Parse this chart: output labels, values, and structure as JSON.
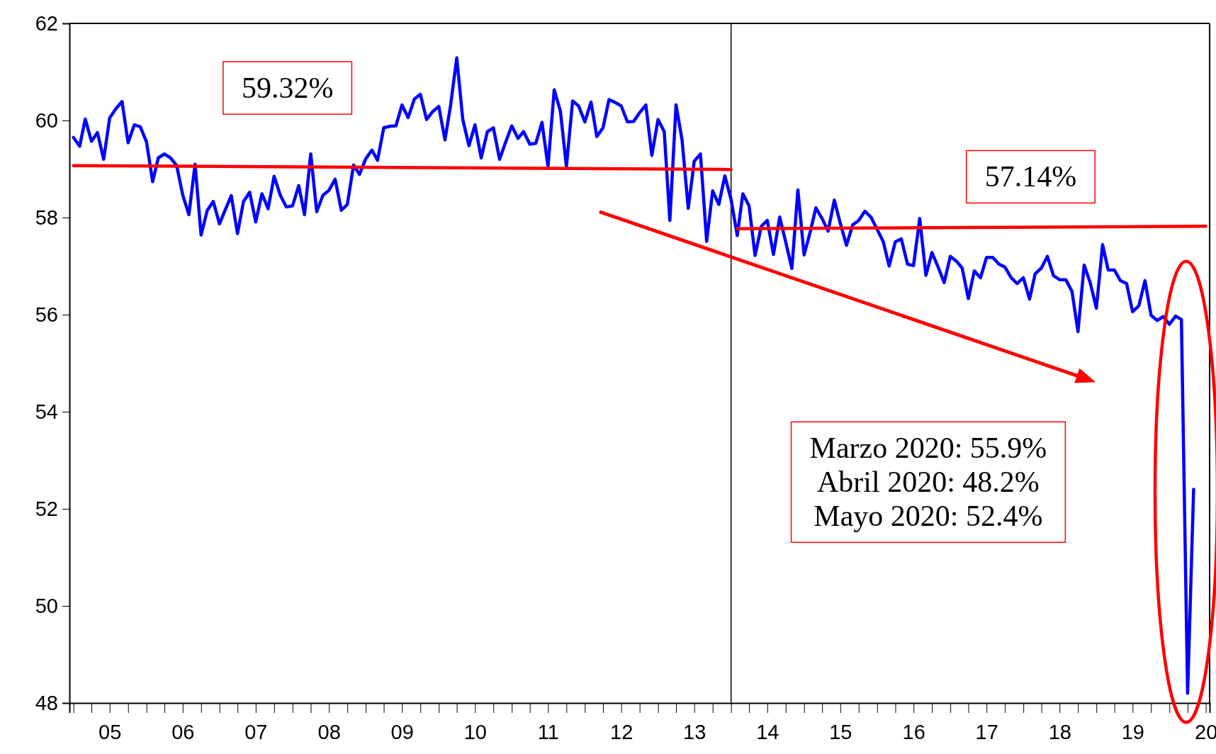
{
  "chart_data": {
    "type": "line",
    "xlim": [
      "2004-12-12",
      "2020-07-20"
    ],
    "ylim": [
      48,
      62
    ],
    "yticks": [
      48,
      50,
      52,
      54,
      56,
      58,
      60,
      62
    ],
    "xticks": [
      {
        "value": "2005-01-01",
        "label": null
      },
      {
        "value": "2005-04-01",
        "label": null
      },
      {
        "value": "2005-07-01",
        "label": "05"
      },
      {
        "value": "2005-10-01",
        "label": null
      },
      {
        "value": "2006-01-01",
        "label": null
      },
      {
        "value": "2006-04-01",
        "label": null
      },
      {
        "value": "2006-07-01",
        "label": "06"
      },
      {
        "value": "2006-10-01",
        "label": null
      },
      {
        "value": "2007-01-01",
        "label": null
      },
      {
        "value": "2007-04-01",
        "label": null
      },
      {
        "value": "2007-07-01",
        "label": "07"
      },
      {
        "value": "2007-10-01",
        "label": null
      },
      {
        "value": "2008-01-01",
        "label": null
      },
      {
        "value": "2008-04-01",
        "label": null
      },
      {
        "value": "2008-07-01",
        "label": "08"
      },
      {
        "value": "2008-10-01",
        "label": null
      },
      {
        "value": "2009-01-01",
        "label": null
      },
      {
        "value": "2009-04-01",
        "label": null
      },
      {
        "value": "2009-07-01",
        "label": "09"
      },
      {
        "value": "2009-10-01",
        "label": null
      },
      {
        "value": "2010-01-01",
        "label": null
      },
      {
        "value": "2010-04-01",
        "label": null
      },
      {
        "value": "2010-07-01",
        "label": "10"
      },
      {
        "value": "2010-10-01",
        "label": null
      },
      {
        "value": "2011-01-01",
        "label": null
      },
      {
        "value": "2011-04-01",
        "label": null
      },
      {
        "value": "2011-07-01",
        "label": "11"
      },
      {
        "value": "2011-10-01",
        "label": null
      },
      {
        "value": "2012-01-01",
        "label": null
      },
      {
        "value": "2012-04-01",
        "label": null
      },
      {
        "value": "2012-07-01",
        "label": "12"
      },
      {
        "value": "2012-10-01",
        "label": null
      },
      {
        "value": "2013-01-01",
        "label": null
      },
      {
        "value": "2013-04-01",
        "label": null
      },
      {
        "value": "2013-07-01",
        "label": "13"
      },
      {
        "value": "2013-10-01",
        "label": null
      },
      {
        "value": "2014-01-01",
        "label": null
      },
      {
        "value": "2014-04-01",
        "label": null
      },
      {
        "value": "2014-07-01",
        "label": "14"
      },
      {
        "value": "2014-10-01",
        "label": null
      },
      {
        "value": "2015-01-01",
        "label": null
      },
      {
        "value": "2015-04-01",
        "label": null
      },
      {
        "value": "2015-07-01",
        "label": "15"
      },
      {
        "value": "2015-10-01",
        "label": null
      },
      {
        "value": "2016-01-01",
        "label": null
      },
      {
        "value": "2016-04-01",
        "label": null
      },
      {
        "value": "2016-07-01",
        "label": "16"
      },
      {
        "value": "2016-10-01",
        "label": null
      },
      {
        "value": "2017-01-01",
        "label": null
      },
      {
        "value": "2017-04-01",
        "label": null
      },
      {
        "value": "2017-07-01",
        "label": "17"
      },
      {
        "value": "2017-10-01",
        "label": null
      },
      {
        "value": "2018-01-01",
        "label": null
      },
      {
        "value": "2018-04-01",
        "label": null
      },
      {
        "value": "2018-07-01",
        "label": "18"
      },
      {
        "value": "2018-10-01",
        "label": null
      },
      {
        "value": "2019-01-01",
        "label": null
      },
      {
        "value": "2019-04-01",
        "label": null
      },
      {
        "value": "2019-07-01",
        "label": "19"
      },
      {
        "value": "2019-10-01",
        "label": null
      },
      {
        "value": "2020-01-01",
        "label": null
      },
      {
        "value": "2020-04-01",
        "label": null
      },
      {
        "value": "2020-07-01",
        "label": "20"
      }
    ],
    "grid": false,
    "marker": "none",
    "line_style": "solid",
    "ref_lines": [
      {
        "axis": "x",
        "value": "2014-01-01",
        "color": "#000000"
      }
    ],
    "annotations": [
      "59.32%",
      "57.14%",
      "Marzo 2020: 55.9%\nAbril 2020: 48.2%\nMayo 2020: 52.4%"
    ],
    "series": [
      {
        "color": "#0000ff",
        "x": [
          "2005-01",
          "2005-02",
          "2005-03",
          "2005-04",
          "2005-05",
          "2005-06",
          "2005-07",
          "2005-08",
          "2005-09",
          "2005-10",
          "2005-11",
          "2005-12",
          "2006-01",
          "2006-02",
          "2006-03",
          "2006-04",
          "2006-05",
          "2006-06",
          "2006-07",
          "2006-08",
          "2006-09",
          "2006-10",
          "2006-11",
          "2006-12",
          "2007-01",
          "2007-02",
          "2007-03",
          "2007-04",
          "2007-05",
          "2007-06",
          "2007-07",
          "2007-08",
          "2007-09",
          "2007-10",
          "2007-11",
          "2007-12",
          "2008-01",
          "2008-02",
          "2008-03",
          "2008-04",
          "2008-05",
          "2008-06",
          "2008-07",
          "2008-08",
          "2008-09",
          "2008-10",
          "2008-11",
          "2008-12",
          "2009-01",
          "2009-02",
          "2009-03",
          "2009-04",
          "2009-05",
          "2009-06",
          "2009-07",
          "2009-08",
          "2009-09",
          "2009-10",
          "2009-11",
          "2009-12",
          "2010-01",
          "2010-02",
          "2010-03",
          "2010-04",
          "2010-05",
          "2010-06",
          "2010-07",
          "2010-08",
          "2010-09",
          "2010-10",
          "2010-11",
          "2010-12",
          "2011-01",
          "2011-02",
          "2011-03",
          "2011-04",
          "2011-05",
          "2011-06",
          "2011-07",
          "2011-08",
          "2011-09",
          "2011-10",
          "2011-11",
          "2011-12",
          "2012-01",
          "2012-02",
          "2012-03",
          "2012-04",
          "2012-05",
          "2012-06",
          "2012-07",
          "2012-08",
          "2012-09",
          "2012-10",
          "2012-11",
          "2012-12",
          "2013-01",
          "2013-02",
          "2013-03",
          "2013-04",
          "2013-05",
          "2013-06",
          "2013-07",
          "2013-08",
          "2013-09",
          "2013-10",
          "2013-11",
          "2013-12",
          "2014-01",
          "2014-02",
          "2014-03",
          "2014-04",
          "2014-05",
          "2014-06",
          "2014-07",
          "2014-08",
          "2014-09",
          "2014-10",
          "2014-11",
          "2014-12",
          "2015-01",
          "2015-02",
          "2015-03",
          "2015-04",
          "2015-05",
          "2015-06",
          "2015-07",
          "2015-08",
          "2015-09",
          "2015-10",
          "2015-11",
          "2015-12",
          "2016-01",
          "2016-02",
          "2016-03",
          "2016-04",
          "2016-05",
          "2016-06",
          "2016-07",
          "2016-08",
          "2016-09",
          "2016-10",
          "2016-11",
          "2016-12",
          "2017-01",
          "2017-02",
          "2017-03",
          "2017-04",
          "2017-05",
          "2017-06",
          "2017-07",
          "2017-08",
          "2017-09",
          "2017-10",
          "2017-11",
          "2017-12",
          "2018-01",
          "2018-02",
          "2018-03",
          "2018-04",
          "2018-05",
          "2018-06",
          "2018-07",
          "2018-08",
          "2018-09",
          "2018-10",
          "2018-11",
          "2018-12",
          "2019-01",
          "2019-02",
          "2019-03",
          "2019-04",
          "2019-05",
          "2019-06",
          "2019-07",
          "2019-08",
          "2019-09",
          "2019-10",
          "2019-11",
          "2019-12",
          "2020-01",
          "2020-02",
          "2020-03",
          "2020-04",
          "2020-05"
        ],
        "values": [
          59.65,
          59.47,
          60.03,
          59.57,
          59.75,
          59.2,
          60.05,
          60.24,
          60.39,
          59.54,
          59.91,
          59.87,
          59.56,
          58.74,
          59.23,
          59.31,
          59.23,
          59.07,
          58.47,
          58.06,
          59.1,
          57.64,
          58.15,
          58.33,
          57.87,
          58.18,
          58.45,
          57.67,
          58.33,
          58.52,
          57.91,
          58.49,
          58.18,
          58.85,
          58.46,
          58.22,
          58.24,
          58.66,
          58.06,
          59.31,
          58.12,
          58.46,
          58.56,
          58.79,
          58.15,
          58.27,
          59.08,
          58.89,
          59.21,
          59.39,
          59.18,
          59.85,
          59.88,
          59.89,
          60.32,
          60.06,
          60.44,
          60.54,
          60.02,
          60.18,
          60.29,
          59.6,
          60.31,
          61.29,
          60.02,
          59.48,
          59.91,
          59.23,
          59.77,
          59.85,
          59.2,
          59.55,
          59.89,
          59.63,
          59.77,
          59.51,
          59.53,
          59.96,
          59.05,
          60.63,
          60.19,
          59.05,
          60.4,
          60.3,
          59.97,
          60.38,
          59.67,
          59.85,
          60.43,
          60.37,
          60.3,
          59.97,
          59.98,
          60.16,
          60.32,
          59.28,
          60.02,
          59.77,
          57.94,
          60.32,
          59.6,
          58.19,
          59.16,
          59.31,
          57.51,
          58.55,
          58.27,
          58.86,
          58.37,
          57.63,
          58.49,
          58.24,
          57.22,
          57.82,
          57.94,
          57.24,
          58.01,
          57.5,
          56.95,
          58.57,
          57.23,
          57.71,
          58.2,
          57.98,
          57.72,
          58.36,
          57.88,
          57.43,
          57.85,
          57.94,
          58.13,
          58.01,
          57.76,
          57.5,
          57.0,
          57.5,
          57.56,
          57.04,
          57.01,
          57.98,
          56.81,
          57.28,
          56.98,
          56.66,
          57.2,
          57.1,
          56.96,
          56.33,
          56.9,
          56.76,
          57.18,
          57.18,
          57.04,
          56.98,
          56.76,
          56.64,
          56.76,
          56.32,
          56.84,
          56.96,
          57.2,
          56.8,
          56.72,
          56.72,
          56.48,
          55.65,
          57.02,
          56.66,
          56.13,
          57.44,
          56.92,
          56.92,
          56.7,
          56.64,
          56.06,
          56.18,
          56.7,
          55.99,
          55.88,
          55.96,
          55.8,
          55.97,
          55.9,
          48.2,
          52.4
        ]
      },
      {
        "type": "line",
        "color": "#ff0000",
        "x": [
          "2005-01",
          "2014-01"
        ],
        "values": [
          59.07,
          58.99
        ]
      },
      {
        "type": "line",
        "color": "#ff0000",
        "x": [
          "2014-02",
          "2020-07"
        ],
        "values": [
          57.77,
          57.82
        ]
      }
    ]
  }
}
